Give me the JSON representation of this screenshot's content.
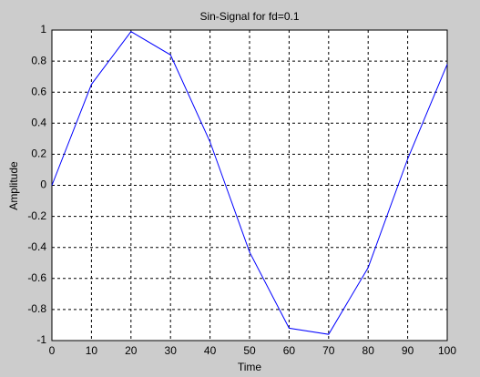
{
  "chart_data": {
    "type": "line",
    "title": "Sin-Signal for fd=0.1",
    "x_label": "Time",
    "y_label": "Amplitude",
    "x": [
      0,
      10,
      20,
      30,
      40,
      50,
      60,
      70,
      80,
      90,
      100
    ],
    "values": [
      0,
      0.65,
      0.99,
      0.84,
      0.28,
      -0.43,
      -0.92,
      -0.96,
      -0.53,
      0.17,
      0.78
    ],
    "color": "#0000ff",
    "xlim": [
      0,
      100
    ],
    "xticks": [
      0,
      10,
      20,
      30,
      40,
      50,
      60,
      70,
      80,
      90,
      100
    ],
    "ylim": [
      -1,
      1
    ],
    "yticks": [
      -1,
      -0.8,
      -0.6,
      -0.4,
      -0.2,
      0,
      0.2,
      0.4,
      0.6,
      0.8,
      1
    ],
    "grid": true
  }
}
